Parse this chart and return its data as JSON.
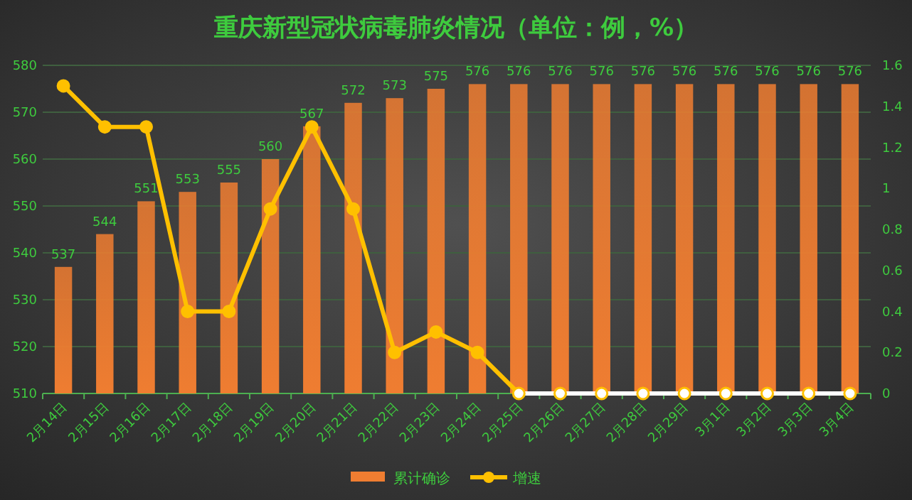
{
  "chart_data": {
    "type": "bar",
    "title": "重庆新型冠状病毒肺炎情况（单位：例，%）",
    "categories": [
      "2月14日",
      "2月15日",
      "2月16日",
      "2月17日",
      "2月18日",
      "2月19日",
      "2月20日",
      "2月21日",
      "2月22日",
      "2月23日",
      "2月24日",
      "2月25日",
      "2月26日",
      "2月27日",
      "2月28日",
      "2月29日",
      "3月1日",
      "3月2日",
      "3月3日",
      "3月4日"
    ],
    "series": [
      {
        "name": "累计确诊",
        "color": "#ef7d31",
        "values": [
          537,
          544,
          551,
          553,
          555,
          560,
          567,
          572,
          573,
          575,
          576,
          576,
          576,
          576,
          576,
          576,
          576,
          576,
          576,
          576
        ],
        "value_labels": [
          "537",
          "544",
          "551",
          "553",
          "555",
          "560",
          "567",
          "572",
          "573",
          "575",
          "576",
          "576",
          "576",
          "576",
          "576",
          "576",
          "576",
          "576",
          "576",
          "576"
        ]
      },
      {
        "name": "增速",
        "type": "line",
        "axis": "y2",
        "color": "#ffc000",
        "colors": [
          "#ffc000",
          "#ffc000",
          "#ffc000",
          "#ffc000",
          "#ffc000",
          "#ffc000",
          "#ffc000",
          "#ffc000",
          "#ffc000",
          "#ffc000",
          "#ffc000",
          "#ffffff",
          "#ffffff",
          "#ffffff",
          "#ffffff",
          "#ffffff",
          "#ffffff",
          "#ffffff",
          "#ffffff",
          "#ffffff"
        ],
        "values": [
          1.5,
          1.3,
          1.3,
          0.4,
          0.4,
          0.9,
          1.3,
          0.9,
          0.2,
          0.3,
          0.2,
          0,
          0,
          0,
          0,
          0,
          0,
          0,
          0,
          0
        ]
      }
    ],
    "ylim": [
      510,
      580
    ],
    "yticks": [
      510,
      520,
      530,
      540,
      550,
      560,
      570,
      580
    ],
    "y2lim": [
      0,
      1.6
    ],
    "y2ticks": [
      0,
      0.2,
      0.4,
      0.6,
      0.8,
      1,
      1.2,
      1.4,
      1.6
    ],
    "grid": "y",
    "marker": "circle",
    "legend": "bottom"
  }
}
